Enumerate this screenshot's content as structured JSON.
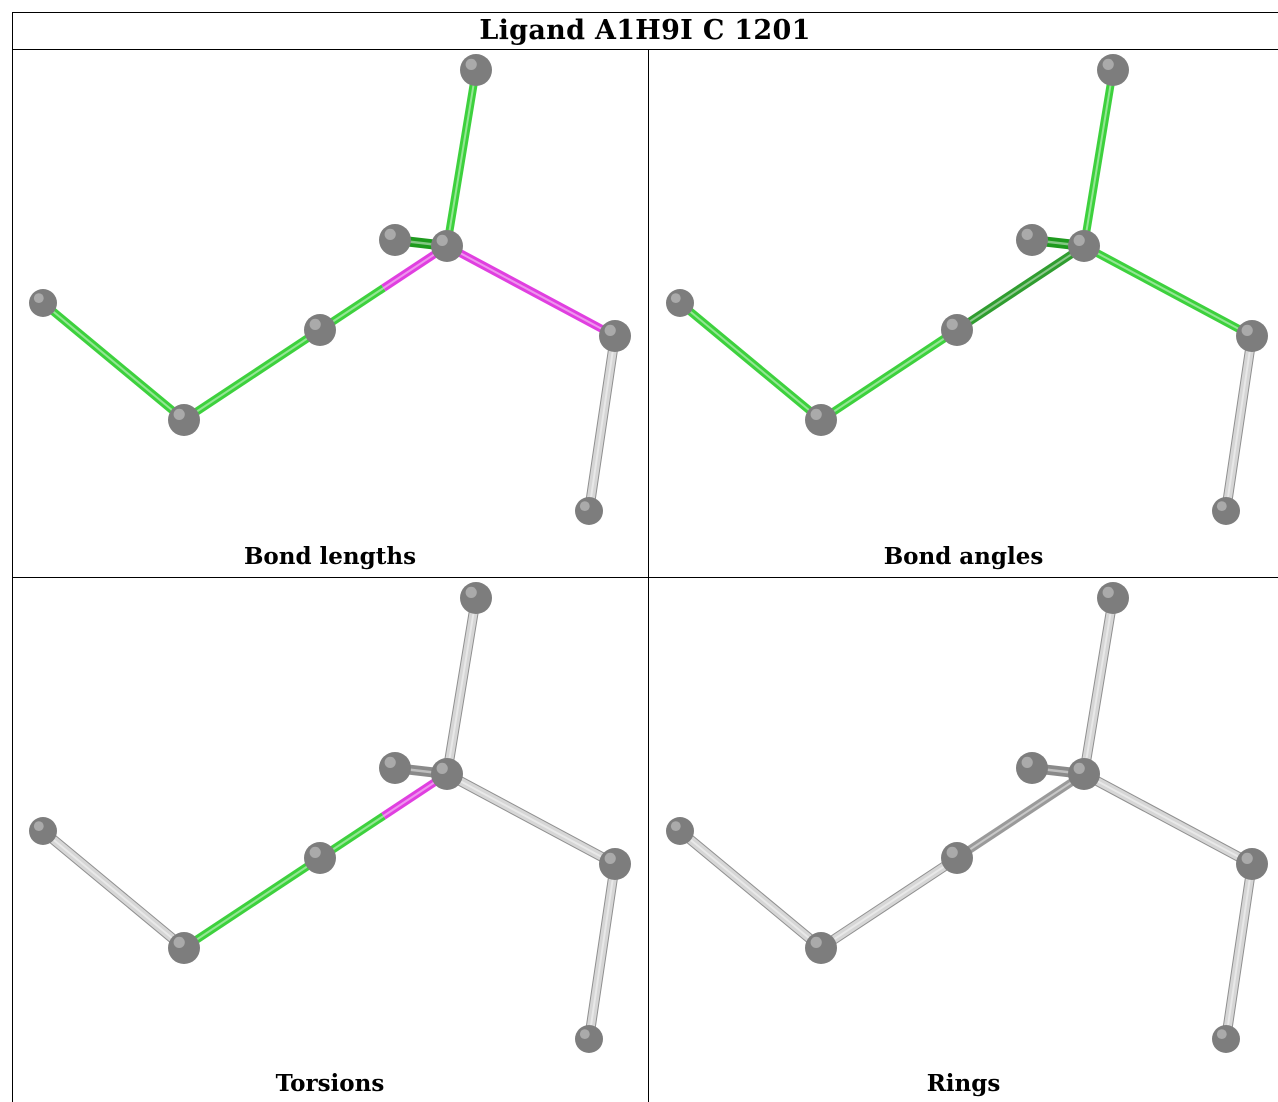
{
  "title": "Ligand A1H9I C 1201",
  "colors": {
    "green": "#3dd13d",
    "green_dark": "#2f9d2f",
    "magenta": "#e03fe0",
    "magenta_dark": "#b030b0",
    "grey": "#d6d6d6",
    "grey_dark": "#9a9a9a",
    "atom": "#7d7d7d"
  },
  "panels": [
    {
      "caption": "Bond lengths",
      "bonds": [
        "green",
        "green",
        "split-green-magenta",
        "green-short",
        "green",
        "magenta",
        "grey"
      ]
    },
    {
      "caption": "Bond angles",
      "bonds": [
        "green",
        "green",
        "green-dark",
        "green-short",
        "green",
        "green",
        "grey"
      ]
    },
    {
      "caption": "Torsions",
      "bonds": [
        "grey",
        "green",
        "split-green-magenta",
        "grey-short",
        "grey",
        "grey",
        "grey"
      ]
    },
    {
      "caption": "Rings",
      "bonds": [
        "grey",
        "grey",
        "grey-dark",
        "grey-short",
        "grey",
        "grey",
        "grey"
      ]
    }
  ]
}
